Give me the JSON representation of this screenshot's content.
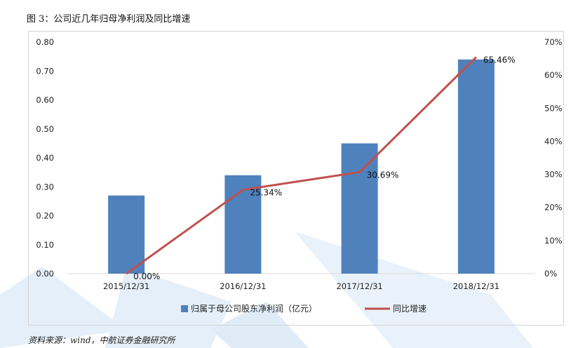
{
  "figure": {
    "title": "图 3：公司近几年归母净利润及同比增速",
    "source": "资料来源：wind，中航证券金融研究所"
  },
  "colors": {
    "bar": "#4f81bd",
    "line": "#c0504d",
    "axis": "#d9d9d9",
    "watermark": "#dcebf8"
  },
  "chart_data": {
    "type": "bar",
    "categories": [
      "2015/12/31",
      "2016/12/31",
      "2017/12/31",
      "2018/12/31"
    ],
    "series": [
      {
        "name": "归属于母公司股东净利润（亿元）",
        "type": "bar",
        "axis": "left",
        "values": [
          0.27,
          0.34,
          0.45,
          0.74
        ]
      },
      {
        "name": "同比增速",
        "type": "line",
        "axis": "right",
        "values": [
          0.0,
          25.34,
          30.69,
          65.46
        ],
        "labels": [
          "0.00%",
          "25.34%",
          "30.69%",
          "65.46%"
        ]
      }
    ],
    "y_left": {
      "range": [
        0,
        0.8
      ],
      "ticks": [
        "0.00",
        "0.10",
        "0.20",
        "0.30",
        "0.40",
        "0.50",
        "0.60",
        "0.70",
        "0.80"
      ]
    },
    "y_right": {
      "range": [
        0,
        70
      ],
      "ticks": [
        "0%",
        "10%",
        "20%",
        "30%",
        "40%",
        "50%",
        "60%",
        "70%"
      ]
    },
    "grid": false,
    "legend_position": "bottom"
  }
}
